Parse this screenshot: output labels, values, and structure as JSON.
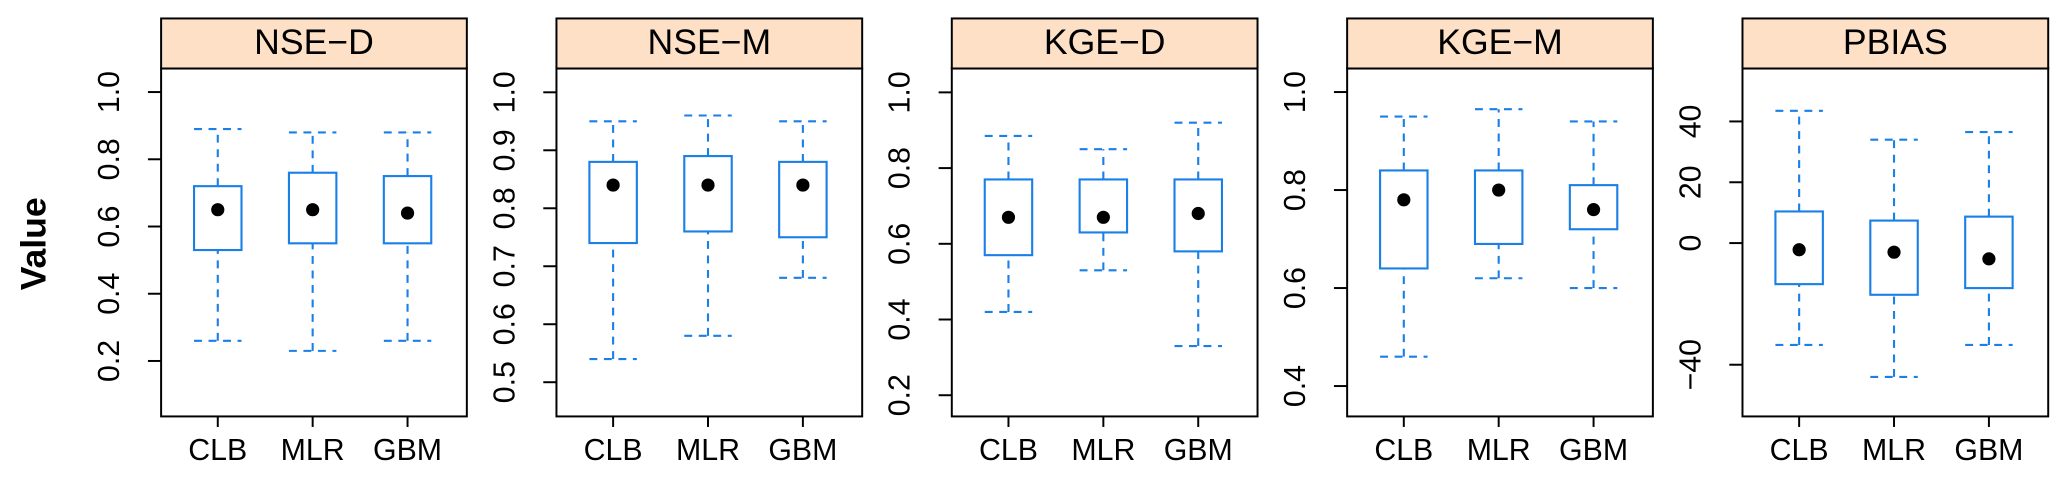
{
  "chart_data": [
    {
      "type": "box",
      "title": "NSE−D",
      "ylabel": "Value",
      "categories": [
        "CLB",
        "MLR",
        "GBM"
      ],
      "color": "#1a7fe6",
      "strip_color": "#fde0c5",
      "values": [
        [
          0.26,
          0.53,
          0.65,
          0.72,
          0.89
        ],
        [
          0.23,
          0.55,
          0.65,
          0.76,
          0.88
        ],
        [
          0.26,
          0.55,
          0.64,
          0.75,
          0.88
        ]
      ],
      "ylim": [
        0.035,
        1.07
      ],
      "yticks": [
        0.2,
        0.4,
        0.6,
        0.8,
        {
          "value": 1.0,
          "label": "1.0"
        }
      ]
    },
    {
      "type": "box",
      "title": "NSE−M",
      "categories": [
        "CLB",
        "MLR",
        "GBM"
      ],
      "color": "#1a7fe6",
      "strip_color": "#fde0c5",
      "values": [
        [
          0.54,
          0.74,
          0.84,
          0.88,
          0.95
        ],
        [
          0.58,
          0.76,
          0.84,
          0.89,
          0.96
        ],
        [
          0.68,
          0.75,
          0.84,
          0.88,
          0.95
        ]
      ],
      "ylim": [
        0.441,
        1.041
      ],
      "yticks": [
        0.5,
        0.6,
        0.7,
        0.8,
        0.9,
        {
          "value": 1.0,
          "label": "1.0"
        }
      ]
    },
    {
      "type": "box",
      "title": "KGE−D",
      "categories": [
        "CLB",
        "MLR",
        "GBM"
      ],
      "color": "#1a7fe6",
      "strip_color": "#fde0c5",
      "values": [
        [
          0.42,
          0.57,
          0.67,
          0.77,
          0.885
        ],
        [
          0.53,
          0.63,
          0.67,
          0.77,
          0.85
        ],
        [
          0.33,
          0.58,
          0.68,
          0.77,
          0.92
        ]
      ],
      "ylim": [
        0.144,
        1.063
      ],
      "yticks": [
        0.2,
        0.4,
        0.6,
        0.8,
        {
          "value": 1.0,
          "label": "1.0"
        }
      ]
    },
    {
      "type": "box",
      "title": "KGE−M",
      "categories": [
        "CLB",
        "MLR",
        "GBM"
      ],
      "color": "#1a7fe6",
      "strip_color": "#fde0c5",
      "values": [
        [
          0.46,
          0.64,
          0.78,
          0.84,
          0.95
        ],
        [
          0.62,
          0.69,
          0.8,
          0.84,
          0.965
        ],
        [
          0.6,
          0.72,
          0.76,
          0.81,
          0.94
        ]
      ],
      "ylim": [
        0.338,
        1.048
      ],
      "yticks": [
        0.4,
        0.6,
        0.8,
        {
          "value": 1.0,
          "label": "1.0"
        }
      ]
    },
    {
      "type": "box",
      "title": "PBIAS",
      "categories": [
        "CLB",
        "MLR",
        "GBM"
      ],
      "color": "#1a7fe6",
      "strip_color": "#fde0c5",
      "values": [
        [
          -33.5,
          -13.5,
          -2.2,
          10.4,
          43.5
        ],
        [
          -44,
          -17,
          -3,
          7.4,
          34
        ],
        [
          -33.5,
          -14.8,
          -5.2,
          8.7,
          36.5
        ]
      ],
      "ylim": [
        -57,
        57.4
      ],
      "yticks": [
        {
          "value": -40,
          "label": "−40"
        },
        0,
        20,
        40
      ]
    }
  ]
}
